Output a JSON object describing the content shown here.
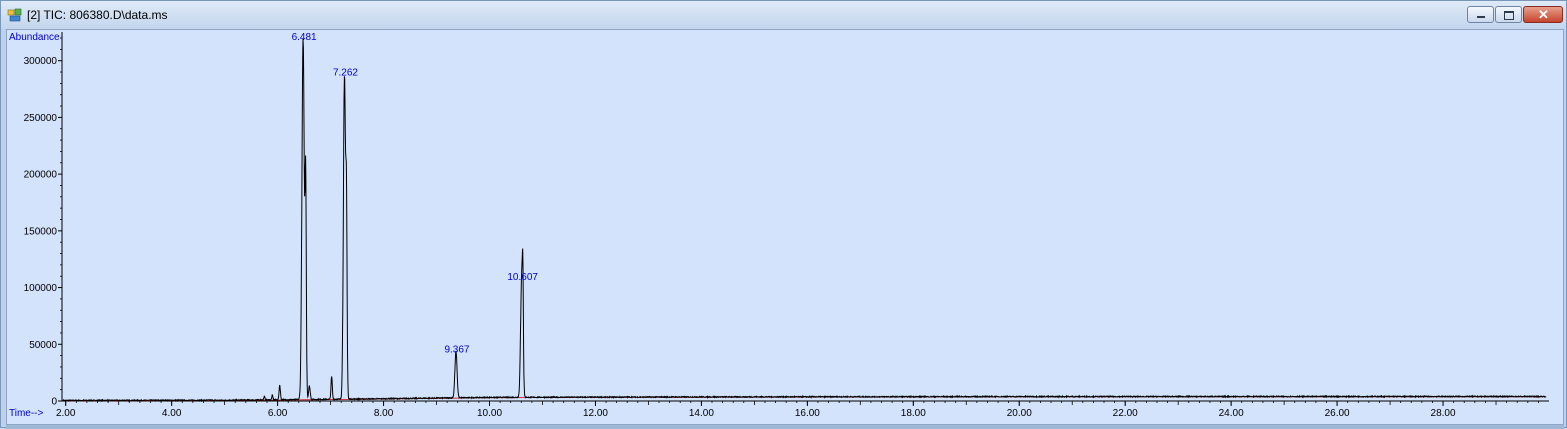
{
  "window": {
    "title": "[2] TIC: 806380.D\\data.ms",
    "icon": "chromatogram-app-icon",
    "controls": [
      "minimize-icon",
      "maximize-icon",
      "close-icon"
    ],
    "accent": "#0000cc",
    "trace_color": "#000000",
    "baseline_color": "#cc0000",
    "plot_background": "#d3e3fb"
  },
  "chart_data": {
    "type": "line",
    "title": "",
    "xlabel": "Time-->",
    "ylabel": "Abundance",
    "xlim": [
      1.93,
      30.0
    ],
    "ylim": [
      0,
      320000
    ],
    "grid": false,
    "x_ticks": [
      2,
      4,
      6,
      8,
      10,
      12,
      14,
      16,
      18,
      20,
      22,
      24,
      26,
      28
    ],
    "x_tick_labels": [
      "2.00",
      "4.00",
      "6.00",
      "8.00",
      "10.00",
      "12.00",
      "14.00",
      "16.00",
      "18.00",
      "20.00",
      "22.00",
      "24.00",
      "26.00",
      "28.00"
    ],
    "y_ticks": [
      0,
      50000,
      100000,
      150000,
      200000,
      250000,
      300000
    ],
    "y_tick_labels": [
      "0",
      "50000",
      "100000",
      "150000",
      "200000",
      "250000",
      "300000"
    ],
    "baseline": [
      {
        "x": 2.0,
        "y": 500
      },
      {
        "x": 5.0,
        "y": 700
      },
      {
        "x": 8.0,
        "y": 2000
      },
      {
        "x": 10.0,
        "y": 3200
      },
      {
        "x": 14.0,
        "y": 3600
      },
      {
        "x": 20.0,
        "y": 3900
      },
      {
        "x": 30.0,
        "y": 4000
      }
    ],
    "peaks": [
      {
        "rt": 5.75,
        "height": 3000,
        "width": 0.01
      },
      {
        "rt": 5.9,
        "height": 4000,
        "width": 0.01
      },
      {
        "rt": 6.04,
        "height": 13000,
        "width": 0.012
      },
      {
        "rt": 6.481,
        "height": 318000,
        "width": 0.022,
        "label": "6.481"
      },
      {
        "rt": 6.53,
        "height": 185000,
        "width": 0.012
      },
      {
        "rt": 6.6,
        "height": 12000,
        "width": 0.015
      },
      {
        "rt": 7.02,
        "height": 20000,
        "width": 0.012
      },
      {
        "rt": 7.262,
        "height": 285000,
        "width": 0.02,
        "label": "7.262"
      },
      {
        "rt": 7.3,
        "height": 150000,
        "width": 0.012
      },
      {
        "rt": 9.367,
        "height": 41000,
        "width": 0.02,
        "label": "9.367"
      },
      {
        "rt": 10.607,
        "height": 105000,
        "width": 0.02,
        "label": "10.607"
      },
      {
        "rt": 10.63,
        "height": 70000,
        "width": 0.01
      }
    ]
  }
}
